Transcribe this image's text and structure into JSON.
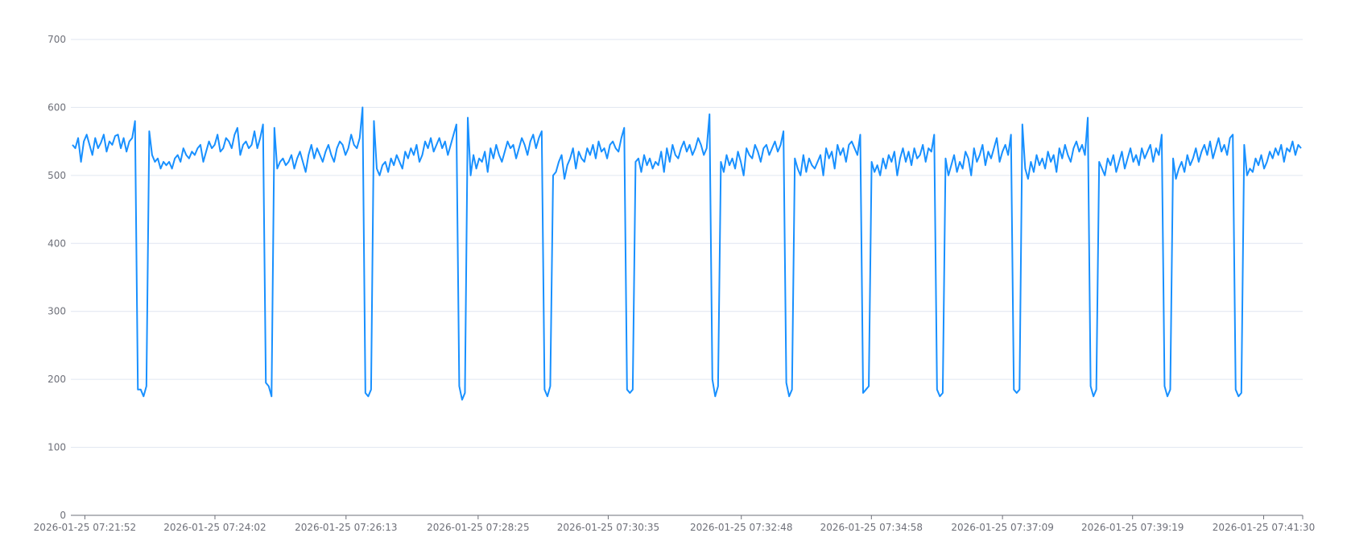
{
  "chart_data": {
    "type": "line",
    "title": "",
    "xlabel": "",
    "ylabel": "",
    "x_range": [
      "2026-01-25 07:21:38",
      "2026-01-25 07:42:09"
    ],
    "ylim": [
      0,
      700
    ],
    "y_ticks": [
      0,
      100,
      200,
      300,
      400,
      500,
      600,
      700
    ],
    "x_tick_labels": [
      "2026-01-25 07:21:52",
      "2026-01-25 07:24:02",
      "2026-01-25 07:26:13",
      "2026-01-25 07:28:25",
      "2026-01-25 07:30:35",
      "2026-01-25 07:32:48",
      "2026-01-25 07:34:58",
      "2026-01-25 07:37:09",
      "2026-01-25 07:39:19",
      "2026-01-25 07:41:30"
    ],
    "grid": true,
    "legend": "none",
    "series": [
      {
        "color": "#1890ff",
        "values": [
          545,
          540,
          555,
          520,
          550,
          560,
          545,
          530,
          555,
          540,
          548,
          560,
          535,
          550,
          545,
          558,
          560,
          540,
          555,
          535,
          550,
          555,
          580,
          185,
          185,
          175,
          190,
          565,
          530,
          520,
          525,
          510,
          520,
          515,
          520,
          510,
          525,
          530,
          520,
          540,
          530,
          525,
          535,
          530,
          540,
          545,
          520,
          535,
          550,
          540,
          545,
          560,
          535,
          540,
          555,
          550,
          540,
          560,
          570,
          530,
          545,
          550,
          540,
          545,
          565,
          540,
          555,
          575,
          195,
          190,
          175,
          570,
          510,
          520,
          525,
          515,
          520,
          530,
          510,
          525,
          535,
          520,
          505,
          530,
          545,
          525,
          540,
          530,
          520,
          535,
          545,
          530,
          520,
          540,
          550,
          545,
          530,
          540,
          560,
          545,
          540,
          555,
          600,
          180,
          175,
          185,
          580,
          510,
          500,
          515,
          520,
          505,
          525,
          515,
          530,
          520,
          510,
          535,
          525,
          540,
          530,
          545,
          520,
          530,
          550,
          540,
          555,
          535,
          545,
          555,
          540,
          550,
          530,
          545,
          560,
          575,
          190,
          170,
          180,
          585,
          500,
          530,
          510,
          525,
          520,
          535,
          505,
          540,
          525,
          545,
          530,
          520,
          535,
          550,
          540,
          545,
          525,
          540,
          555,
          545,
          530,
          550,
          560,
          540,
          555,
          565,
          185,
          175,
          190,
          500,
          505,
          520,
          530,
          495,
          515,
          525,
          540,
          510,
          535,
          525,
          520,
          540,
          530,
          545,
          525,
          550,
          535,
          540,
          525,
          545,
          550,
          540,
          535,
          555,
          570,
          185,
          180,
          185,
          520,
          525,
          505,
          530,
          515,
          525,
          510,
          520,
          515,
          535,
          505,
          540,
          520,
          545,
          530,
          525,
          540,
          550,
          535,
          545,
          530,
          540,
          555,
          545,
          530,
          540,
          590,
          200,
          175,
          190,
          520,
          505,
          530,
          515,
          525,
          510,
          535,
          520,
          500,
          540,
          530,
          525,
          545,
          535,
          520,
          540,
          545,
          530,
          540,
          550,
          535,
          545,
          565,
          195,
          175,
          185,
          525,
          510,
          500,
          530,
          505,
          525,
          515,
          510,
          520,
          530,
          500,
          540,
          525,
          535,
          510,
          545,
          530,
          540,
          520,
          545,
          550,
          540,
          530,
          560,
          180,
          185,
          190,
          520,
          505,
          515,
          500,
          525,
          510,
          530,
          520,
          535,
          500,
          525,
          540,
          520,
          535,
          515,
          540,
          525,
          530,
          545,
          520,
          540,
          535,
          560,
          185,
          175,
          180,
          525,
          500,
          515,
          530,
          505,
          520,
          510,
          535,
          525,
          500,
          540,
          520,
          530,
          545,
          515,
          535,
          525,
          540,
          555,
          520,
          535,
          545,
          530,
          560,
          185,
          180,
          185,
          575,
          510,
          495,
          520,
          505,
          530,
          515,
          525,
          510,
          535,
          520,
          530,
          505,
          540,
          525,
          545,
          530,
          520,
          540,
          550,
          535,
          545,
          530,
          585,
          190,
          175,
          185,
          520,
          510,
          500,
          525,
          515,
          530,
          505,
          520,
          535,
          510,
          525,
          540,
          520,
          530,
          515,
          540,
          525,
          535,
          545,
          520,
          540,
          530,
          560,
          190,
          175,
          185,
          525,
          495,
          510,
          520,
          505,
          530,
          515,
          525,
          540,
          520,
          535,
          545,
          530,
          550,
          525,
          540,
          555,
          535,
          545,
          530,
          555,
          560,
          185,
          175,
          180,
          545,
          500,
          510,
          505,
          525,
          515,
          530,
          510,
          520,
          535,
          525,
          540,
          530,
          545,
          520,
          540,
          535,
          550,
          530,
          545,
          540
        ]
      }
    ]
  }
}
